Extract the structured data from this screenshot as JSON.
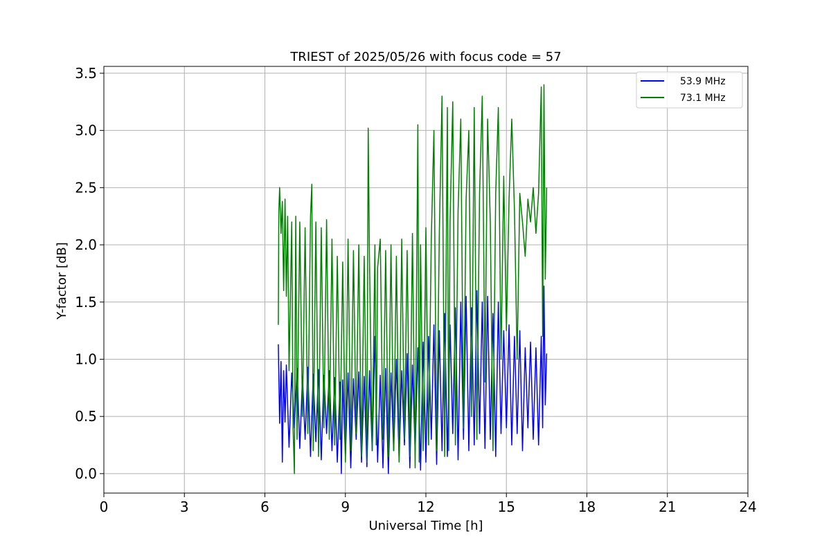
{
  "chart_data": {
    "type": "line",
    "title": "TRIEST of 2025/05/26 with focus code = 57",
    "xlabel": "Universal Time [h]",
    "ylabel": "Y-factor [dB]",
    "xlim": [
      0,
      24
    ],
    "ylim": [
      -0.17,
      3.56
    ],
    "x_ticks": [
      0,
      3,
      6,
      9,
      12,
      15,
      18,
      21,
      24
    ],
    "x_tick_labels": [
      "0",
      "3",
      "6",
      "9",
      "12",
      "15",
      "18",
      "21",
      "24"
    ],
    "y_ticks": [
      0.0,
      0.5,
      1.0,
      1.5,
      2.0,
      2.5,
      3.0,
      3.5
    ],
    "y_tick_labels": [
      "0.0",
      "0.5",
      "1.0",
      "1.5",
      "2.0",
      "2.5",
      "3.0",
      "3.5"
    ],
    "grid": true,
    "legend_position": "top-right",
    "series": [
      {
        "name": "53.9 MHz",
        "color": "#0000ff",
        "x": [
          6.5,
          6.55,
          6.6,
          6.65,
          6.7,
          6.75,
          6.8,
          6.9,
          7.0,
          7.1,
          7.2,
          7.3,
          7.4,
          7.5,
          7.6,
          7.7,
          7.8,
          7.9,
          8.0,
          8.1,
          8.2,
          8.3,
          8.4,
          8.5,
          8.6,
          8.7,
          8.8,
          8.85,
          8.9,
          9.0,
          9.1,
          9.2,
          9.3,
          9.4,
          9.5,
          9.6,
          9.7,
          9.8,
          9.9,
          10.0,
          10.1,
          10.2,
          10.3,
          10.4,
          10.5,
          10.6,
          10.7,
          10.8,
          10.9,
          11.0,
          11.1,
          11.2,
          11.3,
          11.4,
          11.5,
          11.6,
          11.7,
          11.8,
          11.9,
          12.0,
          12.1,
          12.2,
          12.3,
          12.4,
          12.5,
          12.6,
          12.7,
          12.8,
          12.9,
          13.0,
          13.1,
          13.2,
          13.3,
          13.4,
          13.5,
          13.6,
          13.7,
          13.8,
          13.9,
          14.0,
          14.1,
          14.2,
          14.3,
          14.4,
          14.5,
          14.6,
          14.7,
          14.8,
          14.9,
          15.0,
          15.1,
          15.2,
          15.3,
          15.4,
          15.5,
          15.6,
          15.7,
          15.8,
          15.9,
          16.0,
          16.1,
          16.2,
          16.3,
          16.35,
          16.4,
          16.45,
          16.5
        ],
        "y": [
          1.13,
          0.44,
          0.98,
          0.1,
          0.9,
          0.45,
          0.95,
          0.23,
          0.88,
          0.4,
          0.92,
          0.22,
          0.85,
          0.3,
          0.93,
          0.15,
          0.87,
          0.28,
          0.91,
          0.12,
          0.86,
          0.35,
          0.9,
          0.2,
          0.84,
          0.1,
          0.8,
          0.0,
          0.82,
          0.15,
          0.88,
          0.05,
          0.83,
          0.3,
          0.89,
          0.1,
          0.85,
          0.06,
          0.9,
          0.2,
          1.2,
          0.1,
          0.86,
          0.05,
          0.92,
          0.0,
          0.88,
          0.2,
          1.0,
          0.12,
          0.9,
          0.25,
          1.05,
          0.05,
          0.95,
          0.2,
          1.1,
          0.03,
          1.15,
          0.1,
          1.2,
          0.3,
          1.3,
          0.08,
          1.25,
          0.2,
          1.4,
          0.15,
          1.3,
          0.35,
          1.45,
          0.12,
          1.5,
          0.3,
          1.55,
          0.2,
          1.45,
          0.25,
          1.6,
          0.35,
          1.5,
          0.22,
          1.55,
          0.3,
          1.4,
          0.15,
          1.5,
          0.35,
          1.25,
          0.4,
          1.3,
          0.25,
          1.2,
          0.35,
          1.25,
          0.2,
          1.1,
          0.4,
          1.15,
          0.3,
          1.1,
          0.25,
          1.2,
          0.4,
          1.64,
          0.6,
          1.05
        ]
      },
      {
        "name": "73.1 MHz",
        "color": "#008000",
        "x": [
          6.5,
          6.52,
          6.55,
          6.6,
          6.65,
          6.7,
          6.75,
          6.8,
          6.85,
          6.9,
          7.0,
          7.05,
          7.1,
          7.15,
          7.2,
          7.3,
          7.4,
          7.5,
          7.6,
          7.7,
          7.75,
          7.8,
          7.9,
          8.0,
          8.1,
          8.2,
          8.3,
          8.4,
          8.5,
          8.6,
          8.7,
          8.8,
          8.9,
          9.0,
          9.1,
          9.2,
          9.3,
          9.4,
          9.5,
          9.6,
          9.7,
          9.8,
          9.85,
          9.9,
          10.0,
          10.1,
          10.15,
          10.2,
          10.3,
          10.4,
          10.5,
          10.6,
          10.7,
          10.8,
          10.9,
          11.0,
          11.1,
          11.2,
          11.3,
          11.4,
          11.5,
          11.6,
          11.7,
          11.75,
          11.8,
          11.9,
          12.0,
          12.1,
          12.2,
          12.3,
          12.4,
          12.5,
          12.6,
          12.7,
          12.8,
          12.85,
          12.9,
          13.0,
          13.1,
          13.2,
          13.3,
          13.4,
          13.5,
          13.6,
          13.7,
          13.8,
          13.9,
          14.0,
          14.1,
          14.2,
          14.3,
          14.4,
          14.5,
          14.6,
          14.7,
          14.8,
          14.9,
          15.0,
          15.1,
          15.2,
          15.3,
          15.4,
          15.5,
          15.6,
          15.7,
          15.8,
          15.9,
          16.0,
          16.1,
          16.2,
          16.3,
          16.35,
          16.4,
          16.45,
          16.5
        ],
        "y": [
          1.3,
          2.28,
          2.5,
          2.1,
          2.38,
          1.6,
          2.4,
          1.55,
          2.25,
          0.9,
          2.2,
          0.4,
          0.0,
          2.25,
          0.3,
          2.2,
          0.5,
          2.15,
          0.35,
          2.25,
          2.53,
          0.2,
          2.2,
          0.15,
          2.15,
          0.4,
          2.22,
          0.3,
          2.05,
          0.25,
          1.9,
          0.3,
          1.85,
          0.1,
          2.05,
          0.2,
          1.95,
          0.35,
          2.0,
          0.15,
          1.9,
          0.1,
          3.02,
          1.85,
          0.2,
          2.0,
          0.25,
          1.8,
          2.05,
          0.3,
          1.95,
          0.15,
          2.0,
          0.2,
          1.9,
          0.1,
          2.05,
          0.3,
          1.95,
          0.15,
          2.1,
          0.05,
          3.05,
          0.1,
          2.0,
          0.2,
          2.15,
          0.25,
          2.05,
          3.0,
          0.2,
          2.1,
          3.3,
          0.15,
          3.2,
          0.2,
          2.2,
          3.25,
          0.25,
          2.3,
          3.1,
          0.4,
          2.4,
          3.0,
          0.5,
          3.2,
          0.3,
          2.45,
          3.3,
          0.8,
          3.1,
          2.2,
          0.2,
          2.45,
          3.2,
          1.0,
          2.6,
          1.25,
          2.4,
          3.1,
          2.3,
          1.0,
          2.45,
          2.2,
          1.9,
          2.4,
          2.2,
          2.5,
          2.1,
          2.45,
          3.38,
          1.2,
          3.4,
          1.7,
          2.5
        ]
      }
    ]
  }
}
